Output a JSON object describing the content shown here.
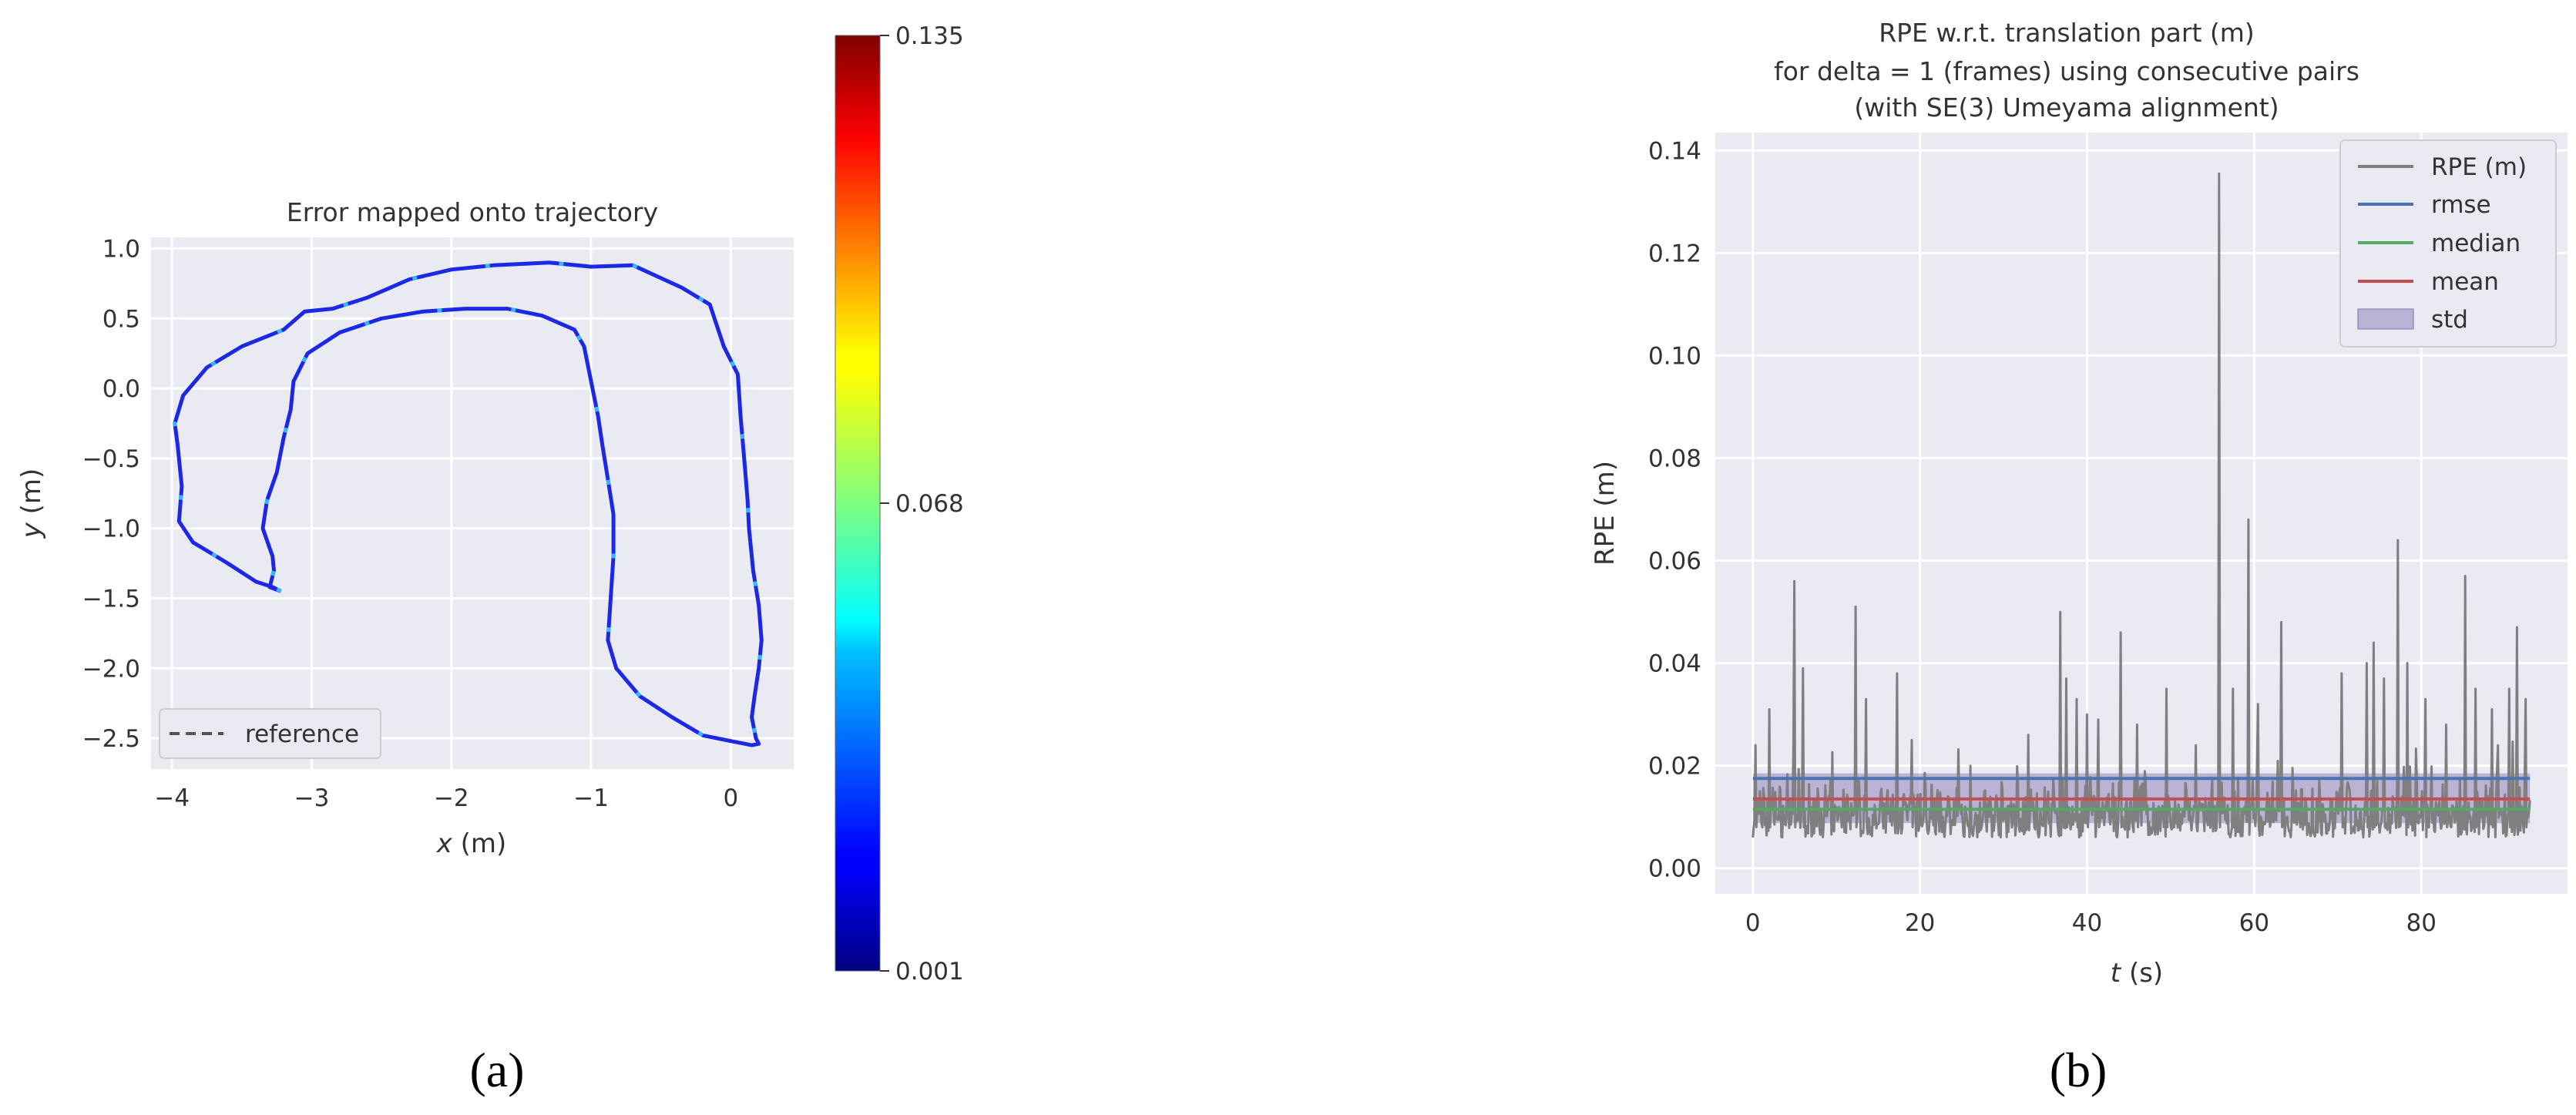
{
  "chart_data": [
    {
      "panel_label": "(a)",
      "type": "line",
      "title": "Error mapped onto trajectory",
      "xlabel_var": "x",
      "xlabel_unit": "(m)",
      "ylabel_var": "y",
      "ylabel_unit": "(m)",
      "xlim": [
        -4.15,
        0.45
      ],
      "ylim": [
        -2.72,
        1.08
      ],
      "xticks": [
        -4,
        -3,
        -2,
        -1,
        0
      ],
      "xtick_labels": [
        "−4",
        "−3",
        "−2",
        "−1",
        "0"
      ],
      "yticks": [
        1.0,
        0.5,
        0.0,
        -0.5,
        -1.0,
        -1.5,
        -2.0,
        -2.5
      ],
      "ytick_labels": [
        "1.0",
        "0.5",
        "0.0",
        "−0.5",
        "−1.0",
        "−1.5",
        "−2.0",
        "−2.5"
      ],
      "grid": true,
      "legend": {
        "position": "lower-left",
        "entries": [
          {
            "label": "reference",
            "style": "dashed",
            "color": "#555555"
          }
        ]
      },
      "trajectory": {
        "x": [
          -3.22,
          -3.28,
          -3.4,
          -3.6,
          -3.85,
          -3.95,
          -3.93,
          -3.96,
          -3.98,
          -3.92,
          -3.75,
          -3.5,
          -3.2,
          -3.05,
          -2.85,
          -2.6,
          -2.3,
          -2.0,
          -1.7,
          -1.3,
          -1.0,
          -0.7,
          -0.35,
          -0.15,
          -0.05,
          0.05,
          0.07,
          0.1,
          0.12,
          0.13,
          0.16,
          0.2,
          0.22,
          0.2,
          0.17,
          0.15,
          0.18,
          0.2,
          0.15,
          0.0,
          -0.2,
          -0.42,
          -0.65,
          -0.82,
          -0.88,
          -0.86,
          -0.84,
          -0.84,
          -0.88,
          -0.92,
          -0.95,
          -1.0,
          -1.05,
          -1.12,
          -1.35,
          -1.6,
          -1.9,
          -2.2,
          -2.5,
          -2.8,
          -3.03,
          -3.13,
          -3.15,
          -3.2,
          -3.25,
          -3.32,
          -3.35,
          -3.28,
          -3.27,
          -3.3,
          -3.22
        ],
        "y": [
          -1.45,
          -1.42,
          -1.38,
          -1.25,
          -1.1,
          -0.95,
          -0.7,
          -0.4,
          -0.25,
          -0.05,
          0.15,
          0.3,
          0.42,
          0.55,
          0.57,
          0.65,
          0.78,
          0.85,
          0.88,
          0.9,
          0.87,
          0.88,
          0.72,
          0.6,
          0.3,
          0.1,
          -0.2,
          -0.55,
          -0.8,
          -1.0,
          -1.3,
          -1.55,
          -1.8,
          -2.0,
          -2.2,
          -2.35,
          -2.5,
          -2.54,
          -2.55,
          -2.52,
          -2.48,
          -2.35,
          -2.2,
          -2.0,
          -1.8,
          -1.5,
          -1.2,
          -0.9,
          -0.65,
          -0.4,
          -0.2,
          0.05,
          0.3,
          0.42,
          0.52,
          0.57,
          0.57,
          0.55,
          0.5,
          0.4,
          0.25,
          0.05,
          -0.15,
          -0.35,
          -0.6,
          -0.8,
          -1.0,
          -1.2,
          -1.3,
          -1.42,
          -1.45
        ],
        "color": "#1c28e6",
        "highlight_color": "#36b8f5"
      },
      "colorbar": {
        "colormap": "jet",
        "min": 0.001,
        "max": 0.135,
        "tick_values": [
          0.135,
          0.068,
          0.001
        ],
        "tick_labels": [
          "0.135",
          "0.068",
          "0.001"
        ]
      }
    },
    {
      "panel_label": "(b)",
      "type": "line",
      "title_lines": [
        "RPE w.r.t. translation part (m)",
        "for delta = 1 (frames) using consecutive pairs",
        "(with SE(3) Umeyama alignment)"
      ],
      "xlabel_var": "t",
      "xlabel_unit": "(s)",
      "ylabel": "RPE (m)",
      "xlim": [
        -4.5,
        97.5
      ],
      "ylim": [
        -0.005,
        0.1435
      ],
      "xticks": [
        0,
        20,
        40,
        60,
        80
      ],
      "xtick_labels": [
        "0",
        "20",
        "40",
        "60",
        "80"
      ],
      "yticks": [
        0.0,
        0.02,
        0.04,
        0.06,
        0.08,
        0.1,
        0.12,
        0.14
      ],
      "ytick_labels": [
        "0.00",
        "0.02",
        "0.04",
        "0.06",
        "0.08",
        "0.10",
        "0.12",
        "0.14"
      ],
      "grid": true,
      "legend": {
        "position": "top-right",
        "entries": [
          {
            "label": "RPE (m)",
            "color": "#7f7f7f",
            "style": "line"
          },
          {
            "label": "rmse",
            "color": "#4c72b0",
            "style": "line"
          },
          {
            "label": "median",
            "color": "#55a868",
            "style": "line"
          },
          {
            "label": "mean",
            "color": "#c44e52",
            "style": "line"
          },
          {
            "label": "std",
            "color": "#8172b3",
            "style": "patch"
          }
        ]
      },
      "stats": {
        "rmse": 0.0175,
        "median": 0.0115,
        "mean": 0.0135,
        "std_low": 0.0088,
        "std_high": 0.0185
      },
      "series": [
        {
          "name": "RPE (m)",
          "color": "#7f7f7f",
          "x_start": 0,
          "x_end": 93,
          "noise_base": 0.006,
          "noise_amp": 0.012,
          "peaks": [
            {
              "x": 0.3,
              "y": 0.024
            },
            {
              "x": 2,
              "y": 0.031
            },
            {
              "x": 5,
              "y": 0.056
            },
            {
              "x": 6,
              "y": 0.039
            },
            {
              "x": 12.3,
              "y": 0.051
            },
            {
              "x": 13.5,
              "y": 0.033
            },
            {
              "x": 17.3,
              "y": 0.038
            },
            {
              "x": 19,
              "y": 0.025
            },
            {
              "x": 26,
              "y": 0.02
            },
            {
              "x": 33,
              "y": 0.026
            },
            {
              "x": 36.8,
              "y": 0.05
            },
            {
              "x": 37.5,
              "y": 0.037
            },
            {
              "x": 38.8,
              "y": 0.033
            },
            {
              "x": 40,
              "y": 0.03
            },
            {
              "x": 41.3,
              "y": 0.029
            },
            {
              "x": 44,
              "y": 0.046
            },
            {
              "x": 46,
              "y": 0.028
            },
            {
              "x": 49.5,
              "y": 0.035
            },
            {
              "x": 53,
              "y": 0.024
            },
            {
              "x": 55.8,
              "y": 0.1355
            },
            {
              "x": 57.5,
              "y": 0.035
            },
            {
              "x": 59.3,
              "y": 0.068
            },
            {
              "x": 60.5,
              "y": 0.032
            },
            {
              "x": 63.2,
              "y": 0.048
            },
            {
              "x": 70.5,
              "y": 0.038
            },
            {
              "x": 73.5,
              "y": 0.04
            },
            {
              "x": 74.3,
              "y": 0.044
            },
            {
              "x": 75.5,
              "y": 0.037
            },
            {
              "x": 77.2,
              "y": 0.064
            },
            {
              "x": 78.3,
              "y": 0.04
            },
            {
              "x": 80.5,
              "y": 0.033
            },
            {
              "x": 83,
              "y": 0.028
            },
            {
              "x": 85.3,
              "y": 0.057
            },
            {
              "x": 86.5,
              "y": 0.035
            },
            {
              "x": 88.5,
              "y": 0.031
            },
            {
              "x": 90.5,
              "y": 0.035
            },
            {
              "x": 91.5,
              "y": 0.047
            },
            {
              "x": 92.5,
              "y": 0.033
            }
          ]
        }
      ]
    }
  ]
}
